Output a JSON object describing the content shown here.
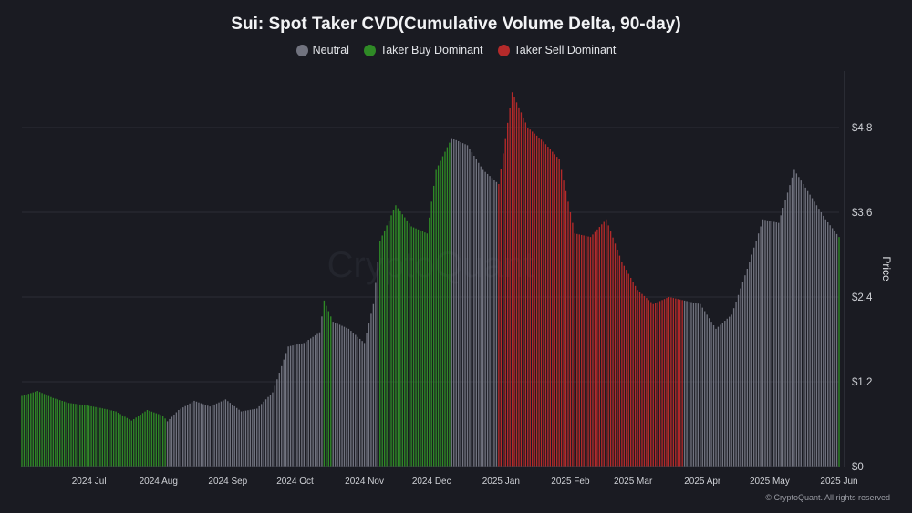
{
  "chart_data": {
    "type": "bar",
    "title": "Sui: Spot Taker CVD(Cumulative Volume Delta, 90-day)",
    "ylabel": "Price",
    "ylim": [
      0,
      5.6
    ],
    "yticks": [
      "$0",
      "$1.2",
      "$2.4",
      "$3.6",
      "$4.8"
    ],
    "ytick_values": [
      0,
      1.2,
      2.4,
      3.6,
      4.8
    ],
    "xticks": [
      "2024 Jul",
      "2024 Aug",
      "2024 Sep",
      "2024 Oct",
      "2024 Nov",
      "2024 Dec",
      "2025 Jan",
      "2025 Feb",
      "2025 Mar",
      "2025 Apr",
      "2025 May",
      "2025 Jun"
    ],
    "xtick_dates": [
      "2024-07-01",
      "2024-08-01",
      "2024-09-01",
      "2024-10-01",
      "2024-11-01",
      "2024-12-01",
      "2025-01-01",
      "2025-02-01",
      "2025-03-01",
      "2025-04-01",
      "2025-05-01",
      "2025-06-01"
    ],
    "xlim": [
      "2024-06-01",
      "2025-06-01"
    ],
    "watermark": "CryptoQuant",
    "grid": true,
    "legend_position": "top-center",
    "series": [
      {
        "name": "Neutral",
        "color": "#71737f"
      },
      {
        "name": "Taker Buy Dominant",
        "color": "#2f8a26"
      },
      {
        "name": "Taker Sell Dominant",
        "color": "#b42a2a"
      }
    ],
    "points": [
      [
        "2024-06-01",
        1.0,
        1
      ],
      [
        "2024-06-08",
        1.07,
        1
      ],
      [
        "2024-06-15",
        0.97,
        1
      ],
      [
        "2024-06-22",
        0.9,
        1
      ],
      [
        "2024-06-29",
        0.87,
        1
      ],
      [
        "2024-07-06",
        0.83,
        1
      ],
      [
        "2024-07-13",
        0.78,
        1
      ],
      [
        "2024-07-20",
        0.65,
        1
      ],
      [
        "2024-07-27",
        0.8,
        1
      ],
      [
        "2024-08-03",
        0.72,
        1
      ],
      [
        "2024-08-05",
        0.64,
        0
      ],
      [
        "2024-08-10",
        0.8,
        0
      ],
      [
        "2024-08-17",
        0.93,
        0
      ],
      [
        "2024-08-24",
        0.85,
        0
      ],
      [
        "2024-08-31",
        0.95,
        0
      ],
      [
        "2024-09-07",
        0.78,
        0
      ],
      [
        "2024-09-14",
        0.82,
        0
      ],
      [
        "2024-09-21",
        1.05,
        0
      ],
      [
        "2024-09-28",
        1.7,
        0
      ],
      [
        "2024-10-05",
        1.75,
        0
      ],
      [
        "2024-10-12",
        1.9,
        0
      ],
      [
        "2024-10-14",
        2.35,
        1
      ],
      [
        "2024-10-18",
        2.05,
        0
      ],
      [
        "2024-10-25",
        1.95,
        0
      ],
      [
        "2024-11-01",
        1.75,
        0
      ],
      [
        "2024-11-05",
        2.3,
        0
      ],
      [
        "2024-11-08",
        3.2,
        1
      ],
      [
        "2024-11-15",
        3.7,
        1
      ],
      [
        "2024-11-22",
        3.4,
        1
      ],
      [
        "2024-11-29",
        3.3,
        1
      ],
      [
        "2024-12-03",
        4.2,
        1
      ],
      [
        "2024-12-10",
        4.65,
        0
      ],
      [
        "2024-12-17",
        4.55,
        0
      ],
      [
        "2024-12-24",
        4.2,
        0
      ],
      [
        "2024-12-31",
        4.0,
        2
      ],
      [
        "2025-01-06",
        5.3,
        2
      ],
      [
        "2025-01-13",
        4.8,
        2
      ],
      [
        "2025-01-20",
        4.6,
        2
      ],
      [
        "2025-01-27",
        4.35,
        2
      ],
      [
        "2025-02-03",
        3.3,
        2
      ],
      [
        "2025-02-10",
        3.25,
        2
      ],
      [
        "2025-02-17",
        3.5,
        2
      ],
      [
        "2025-02-24",
        2.9,
        2
      ],
      [
        "2025-03-03",
        2.5,
        2
      ],
      [
        "2025-03-10",
        2.3,
        2
      ],
      [
        "2025-03-17",
        2.4,
        2
      ],
      [
        "2025-03-24",
        2.35,
        0
      ],
      [
        "2025-03-31",
        2.3,
        0
      ],
      [
        "2025-04-07",
        1.95,
        0
      ],
      [
        "2025-04-14",
        2.15,
        0
      ],
      [
        "2025-04-21",
        2.8,
        0
      ],
      [
        "2025-04-28",
        3.5,
        0
      ],
      [
        "2025-05-05",
        3.45,
        0
      ],
      [
        "2025-05-12",
        4.2,
        0
      ],
      [
        "2025-05-19",
        3.85,
        0
      ],
      [
        "2025-05-26",
        3.5,
        0
      ],
      [
        "2025-06-01",
        3.25,
        1
      ]
    ]
  },
  "copyright": "© CryptoQuant. All rights reserved"
}
